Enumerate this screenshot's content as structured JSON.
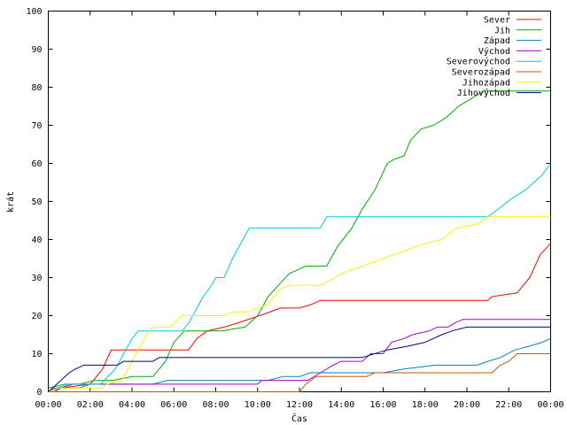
{
  "chart_data": {
    "type": "line",
    "title": "",
    "xlabel": "Čas",
    "ylabel": "krát",
    "xlim": [
      0,
      24
    ],
    "ylim": [
      0,
      100
    ],
    "x_ticks": [
      {
        "value": 0,
        "label": "00:00"
      },
      {
        "value": 2,
        "label": "02:00"
      },
      {
        "value": 4,
        "label": "04:00"
      },
      {
        "value": 6,
        "label": "06:00"
      },
      {
        "value": 8,
        "label": "08:00"
      },
      {
        "value": 10,
        "label": "10:00"
      },
      {
        "value": 12,
        "label": "12:00"
      },
      {
        "value": 14,
        "label": "14:00"
      },
      {
        "value": 16,
        "label": "16:00"
      },
      {
        "value": 18,
        "label": "18:00"
      },
      {
        "value": 20,
        "label": "20:00"
      },
      {
        "value": 22,
        "label": "22:00"
      },
      {
        "value": 24,
        "label": "00:00"
      }
    ],
    "y_ticks": [
      0,
      10,
      20,
      30,
      40,
      50,
      60,
      70,
      80,
      90,
      100
    ],
    "grid": false,
    "legend": "top-right",
    "series": [
      {
        "name": "Sever",
        "color": "#ff0000",
        "points": [
          [
            0.3,
            0
          ],
          [
            0.6,
            1
          ],
          [
            2,
            2
          ],
          [
            2.6,
            6
          ],
          [
            3,
            11
          ],
          [
            6.7,
            11
          ],
          [
            7.1,
            14
          ],
          [
            7.6,
            16
          ],
          [
            8.4,
            17
          ],
          [
            9,
            18
          ],
          [
            10.1,
            20
          ],
          [
            11.1,
            22
          ],
          [
            12,
            22
          ],
          [
            12.6,
            23
          ],
          [
            13,
            24
          ],
          [
            21,
            24
          ],
          [
            21.2,
            25
          ],
          [
            22.4,
            26
          ],
          [
            23,
            30
          ],
          [
            23.5,
            36
          ],
          [
            24,
            39
          ]
        ]
      },
      {
        "name": "Jih",
        "color": "#00aa00",
        "points": [
          [
            0,
            1
          ],
          [
            0.8,
            2
          ],
          [
            1.5,
            2
          ],
          [
            2.2,
            3
          ],
          [
            3.1,
            3
          ],
          [
            4,
            4
          ],
          [
            5,
            4
          ],
          [
            5.6,
            8
          ],
          [
            6,
            13
          ],
          [
            6.5,
            16
          ],
          [
            8.3,
            16
          ],
          [
            9.4,
            17
          ],
          [
            10,
            20
          ],
          [
            10.5,
            25
          ],
          [
            11,
            28
          ],
          [
            11.5,
            31
          ],
          [
            12.3,
            33
          ],
          [
            13.3,
            33
          ],
          [
            13.8,
            38
          ],
          [
            14.5,
            43
          ],
          [
            15,
            48
          ],
          [
            15.6,
            53
          ],
          [
            16.2,
            60
          ],
          [
            16.5,
            61
          ],
          [
            17,
            62
          ],
          [
            17.3,
            66
          ],
          [
            17.8,
            69
          ],
          [
            18.4,
            70
          ],
          [
            19,
            72
          ],
          [
            19.6,
            75
          ],
          [
            20.2,
            77
          ],
          [
            20.8,
            79
          ],
          [
            24,
            79
          ]
        ]
      },
      {
        "name": "Západ",
        "color": "#0080c0",
        "points": [
          [
            0,
            0
          ],
          [
            0.3,
            1
          ],
          [
            1.5,
            1
          ],
          [
            2,
            2
          ],
          [
            5,
            2
          ],
          [
            5.7,
            3
          ],
          [
            10.5,
            3
          ],
          [
            11.2,
            4
          ],
          [
            12,
            4
          ],
          [
            12.5,
            5
          ],
          [
            16,
            5
          ],
          [
            17,
            6
          ],
          [
            18.5,
            7
          ],
          [
            20.5,
            7
          ],
          [
            21,
            8
          ],
          [
            21.6,
            9
          ],
          [
            22.3,
            11
          ],
          [
            23,
            12
          ],
          [
            23.6,
            13
          ],
          [
            24,
            14
          ]
        ]
      },
      {
        "name": "Východ",
        "color": "#aa00cc",
        "points": [
          [
            0,
            0
          ],
          [
            0.6,
            1
          ],
          [
            1.2,
            2
          ],
          [
            4,
            2
          ],
          [
            10,
            2
          ],
          [
            10.2,
            3
          ],
          [
            12.4,
            3
          ],
          [
            13,
            5
          ],
          [
            13.6,
            7
          ],
          [
            14,
            8
          ],
          [
            15,
            8
          ],
          [
            15.4,
            10
          ],
          [
            16,
            10
          ],
          [
            16.4,
            13
          ],
          [
            17,
            14
          ],
          [
            17.4,
            15
          ],
          [
            18.2,
            16
          ],
          [
            18.6,
            17
          ],
          [
            19.1,
            17
          ],
          [
            19.4,
            18
          ],
          [
            19.8,
            19
          ],
          [
            24,
            19
          ]
        ]
      },
      {
        "name": "Severovýchod",
        "color": "#00ccdd",
        "points": [
          [
            0,
            0
          ],
          [
            0.4,
            1
          ],
          [
            1,
            2
          ],
          [
            2.5,
            2
          ],
          [
            3.2,
            6
          ],
          [
            3.6,
            10
          ],
          [
            4,
            14
          ],
          [
            4.3,
            16
          ],
          [
            6.4,
            16
          ],
          [
            6.7,
            18
          ],
          [
            7,
            21
          ],
          [
            7.4,
            25
          ],
          [
            7.8,
            28
          ],
          [
            8,
            30
          ],
          [
            8.4,
            30
          ],
          [
            8.8,
            35
          ],
          [
            9.2,
            39
          ],
          [
            9.6,
            43
          ],
          [
            13,
            43
          ],
          [
            13.3,
            46
          ],
          [
            17,
            46
          ],
          [
            21,
            46
          ],
          [
            21.5,
            48
          ],
          [
            22.2,
            51
          ],
          [
            22.8,
            53
          ],
          [
            23.2,
            55
          ],
          [
            23.6,
            57
          ],
          [
            24,
            60
          ]
        ]
      },
      {
        "name": "Severozápad",
        "color": "#cc5500",
        "points": [
          [
            0,
            0
          ],
          [
            12,
            0
          ],
          [
            12.3,
            2
          ],
          [
            12.8,
            4
          ],
          [
            15.2,
            4
          ],
          [
            15.6,
            5
          ],
          [
            21.2,
            5
          ],
          [
            21.6,
            7
          ],
          [
            22,
            8
          ],
          [
            22.4,
            10
          ],
          [
            24,
            10
          ]
        ]
      },
      {
        "name": "Jihozápad",
        "color": "#ffee00",
        "points": [
          [
            0,
            0
          ],
          [
            0.5,
            1
          ],
          [
            2.5,
            1
          ],
          [
            2.8,
            2
          ],
          [
            3.5,
            3
          ],
          [
            4,
            8
          ],
          [
            4.7,
            15
          ],
          [
            5,
            17
          ],
          [
            5.8,
            17
          ],
          [
            6.4,
            20
          ],
          [
            8.4,
            20
          ],
          [
            8.8,
            21
          ],
          [
            9.6,
            21
          ],
          [
            10,
            22
          ],
          [
            10.5,
            23
          ],
          [
            11.1,
            27
          ],
          [
            11.5,
            28
          ],
          [
            13,
            28
          ],
          [
            13.4,
            29
          ],
          [
            14,
            31
          ],
          [
            15,
            33
          ],
          [
            16,
            35
          ],
          [
            17,
            37
          ],
          [
            18,
            39
          ],
          [
            18.8,
            40
          ],
          [
            19.5,
            43
          ],
          [
            20.5,
            44
          ],
          [
            21,
            46
          ],
          [
            24,
            46
          ]
        ]
      },
      {
        "name": "Jihovýchod",
        "color": "#000099",
        "points": [
          [
            0,
            0
          ],
          [
            0.2,
            1
          ],
          [
            0.6,
            3
          ],
          [
            1,
            5
          ],
          [
            1.3,
            6
          ],
          [
            1.7,
            7
          ],
          [
            3.3,
            7
          ],
          [
            3.6,
            8
          ],
          [
            5,
            8
          ],
          [
            5.3,
            9
          ],
          [
            6,
            9
          ],
          [
            13,
            9
          ],
          [
            15,
            9
          ],
          [
            16.2,
            11
          ],
          [
            17.2,
            12
          ],
          [
            18,
            13
          ],
          [
            18.8,
            15
          ],
          [
            19.3,
            16
          ],
          [
            20,
            17
          ],
          [
            24,
            17
          ]
        ]
      }
    ]
  }
}
